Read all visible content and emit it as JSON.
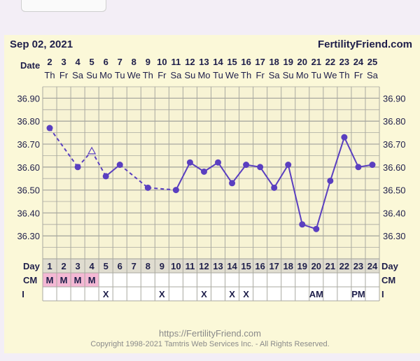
{
  "page": {
    "date": "Sep 02, 2021",
    "brand": "FertilityFriend.com",
    "footer_url": "https://FertilityFriend.com",
    "footer_copyright": "Copyright 1998-2021 Tamtris Web Services Inc. - All Rights Reserved."
  },
  "chart_data": {
    "type": "line",
    "title": "",
    "row_labels": {
      "date": "Date",
      "day": "Day",
      "cm": "CM",
      "i": "I"
    },
    "dates": [
      "2",
      "3",
      "4",
      "5",
      "6",
      "7",
      "8",
      "9",
      "10",
      "11",
      "12",
      "13",
      "14",
      "15",
      "16",
      "17",
      "18",
      "19",
      "20",
      "21",
      "22",
      "23",
      "24",
      "25"
    ],
    "weekdays": [
      "Th",
      "Fr",
      "Sa",
      "Su",
      "Mo",
      "Tu",
      "We",
      "Th",
      "Fr",
      "Sa",
      "Su",
      "Mo",
      "Tu",
      "We",
      "Th",
      "Fr",
      "Sa",
      "Su",
      "Mo",
      "Tu",
      "We",
      "Th",
      "Fr",
      "Sa"
    ],
    "cycle_days": [
      "1",
      "2",
      "3",
      "4",
      "5",
      "6",
      "7",
      "8",
      "9",
      "10",
      "11",
      "12",
      "13",
      "14",
      "15",
      "16",
      "17",
      "18",
      "19",
      "20",
      "21",
      "22",
      "23",
      "24"
    ],
    "ylim": [
      36.2,
      36.95
    ],
    "y_ticks": [
      "36.90",
      "36.80",
      "36.70",
      "36.60",
      "36.50",
      "36.40",
      "36.30"
    ],
    "temperatures": [
      36.77,
      null,
      36.6,
      36.67,
      36.56,
      36.61,
      null,
      36.51,
      null,
      36.5,
      36.62,
      36.58,
      36.62,
      36.53,
      36.61,
      36.6,
      36.51,
      36.61,
      36.35,
      36.33,
      36.54,
      36.73,
      36.6,
      36.61
    ],
    "marker": [
      "dot",
      "none",
      "dot",
      "open-triangle",
      "dot",
      "dot",
      "none",
      "dot",
      "none",
      "dot",
      "dot",
      "dot",
      "dot",
      "dot",
      "dot",
      "dot",
      "dot",
      "dot",
      "dot",
      "dot",
      "dot",
      "dot",
      "dot",
      "dot"
    ],
    "cm": [
      "M",
      "M",
      "M",
      "M",
      "",
      "",
      "",
      "",
      "",
      "",
      "",
      "",
      "",
      "",
      "",
      "",
      "",
      "",
      "",
      "",
      "",
      "",
      "",
      ""
    ],
    "intercourse": [
      "",
      "",
      "",
      "",
      "X",
      "",
      "",
      "",
      "X",
      "",
      "",
      "X",
      "",
      "X",
      "X",
      "",
      "",
      "",
      "",
      "AM",
      "",
      "",
      "PM",
      ""
    ],
    "colors": {
      "line": "#5a3fc0",
      "cm_fill": "#f4b8d4",
      "text": "#1e1e4a",
      "grid": "#a9a9a0",
      "plot_bg": "#f7f3d4"
    }
  }
}
